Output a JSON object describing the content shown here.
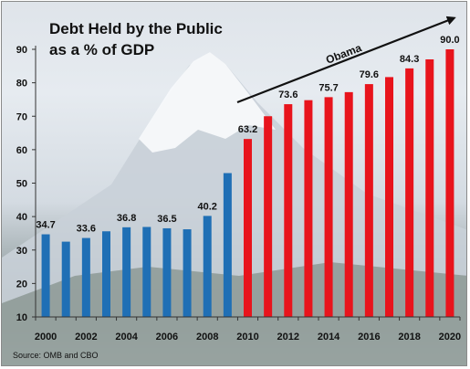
{
  "chart_data": {
    "type": "bar",
    "title_line1": "Debt Held by the Public",
    "title_line2": "as a % of GDP",
    "xlabel": "",
    "ylabel": "",
    "ylim": [
      10,
      90
    ],
    "y_ticks": [
      "10",
      "20",
      "30",
      "40",
      "50",
      "60",
      "70",
      "80",
      "90"
    ],
    "x_tick_labels": [
      "2000",
      "2002",
      "2004",
      "2006",
      "2008",
      "2010",
      "2012",
      "2014",
      "2016",
      "2018",
      "2020"
    ],
    "grid": false,
    "categories": [
      "2000",
      "2001",
      "2002",
      "2003",
      "2004",
      "2005",
      "2006",
      "2007",
      "2008",
      "2009",
      "2010",
      "2011",
      "2012",
      "2013",
      "2014",
      "2015",
      "2016",
      "2017",
      "2018",
      "2019",
      "2020"
    ],
    "series": [
      {
        "color": "#1f6fb5",
        "values": [
          34.7,
          32.5,
          33.6,
          35.6,
          36.8,
          36.9,
          36.5,
          36.2,
          40.2,
          53.0,
          null,
          null,
          null,
          null,
          null,
          null,
          null,
          null,
          null,
          null,
          null
        ]
      },
      {
        "color": "#e8141c",
        "values": [
          null,
          null,
          null,
          null,
          null,
          null,
          null,
          null,
          null,
          null,
          63.2,
          70.0,
          73.6,
          74.8,
          75.7,
          77.2,
          79.6,
          81.7,
          84.3,
          87.0,
          90.0
        ]
      }
    ],
    "data_labels": [
      {
        "index": 0,
        "text": "34.7"
      },
      {
        "index": 2,
        "text": "33.6"
      },
      {
        "index": 4,
        "text": "36.8"
      },
      {
        "index": 6,
        "text": "36.5"
      },
      {
        "index": 8,
        "text": "40.2"
      },
      {
        "index": 10,
        "text": "63.2"
      },
      {
        "index": 12,
        "text": "73.6"
      },
      {
        "index": 14,
        "text": "75.7"
      },
      {
        "index": 16,
        "text": "79.6"
      },
      {
        "index": 18,
        "text": "84.3"
      },
      {
        "index": 20,
        "text": "90.0"
      }
    ],
    "annotation": "Obama",
    "source": "Source: OMB and CBO"
  }
}
